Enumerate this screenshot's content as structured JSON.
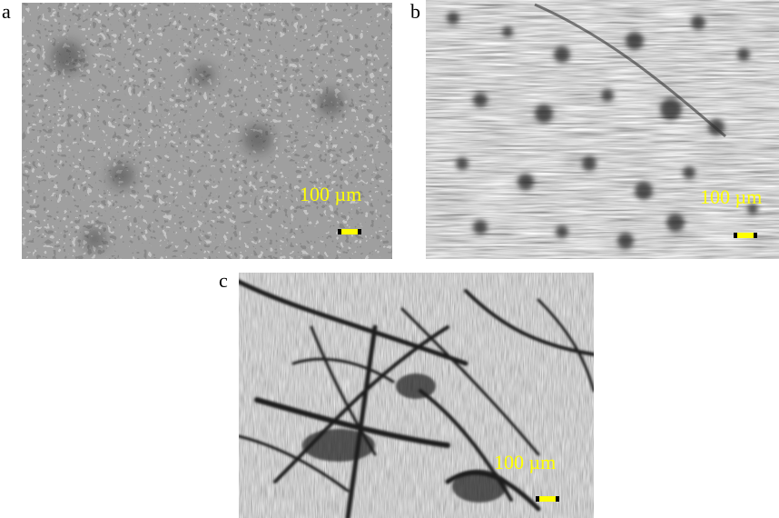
{
  "figure": {
    "panels": [
      {
        "label": "a",
        "scale_text": "100 µm",
        "texture": "fine-cellular-network"
      },
      {
        "label": "b",
        "scale_text": "100 µm",
        "texture": "streaked-with-dark-spots"
      },
      {
        "label": "c",
        "scale_text": "100 µm",
        "texture": "fibrous-dark-strands"
      }
    ],
    "colors": {
      "scale_label": "#ffff00",
      "scale_bar": "#ffff00",
      "background": "#ffffff"
    }
  }
}
